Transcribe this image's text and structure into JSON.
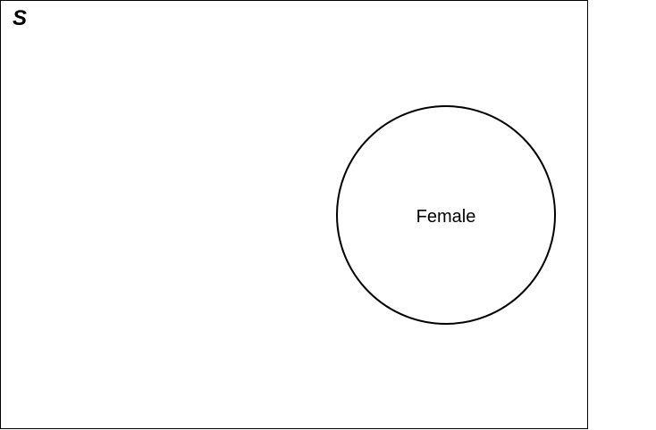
{
  "diagram": {
    "type": "venn",
    "sample_space_label": "S",
    "sets": [
      {
        "label": "Female"
      }
    ],
    "colors": {
      "stroke": "#000000",
      "background": "#ffffff"
    }
  }
}
